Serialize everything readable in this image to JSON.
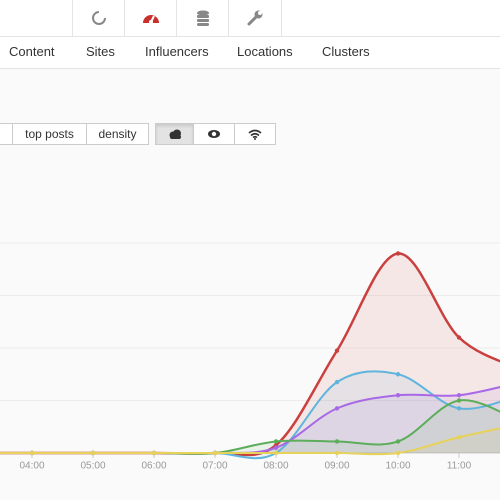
{
  "nav": {
    "tabs": [
      "Content",
      "Sites",
      "Influencers",
      "Locations",
      "Clusters"
    ]
  },
  "toolbar": {
    "buttons": [
      "top posts",
      "density"
    ]
  },
  "chart_data": {
    "type": "area",
    "categories": [
      null,
      "04:00",
      "05:00",
      "06:00",
      "07:00",
      "08:00",
      "09:00",
      "10:00",
      "11:00",
      null
    ],
    "ylim": [
      0,
      4
    ],
    "yticks": [
      0,
      1,
      2,
      3,
      4
    ],
    "grid": true,
    "series": [
      {
        "color": "#c9403f",
        "values": [
          0,
          0,
          0,
          0,
          0,
          0.15,
          1.95,
          3.8,
          2.2,
          1.6
        ]
      },
      {
        "color": "#5fb5de",
        "values": [
          0,
          0,
          0,
          0,
          0,
          0,
          1.35,
          1.5,
          0.85,
          1.1
        ]
      },
      {
        "color": "#a869e6",
        "values": [
          0,
          0,
          0,
          0,
          0,
          0.1,
          0.85,
          1.1,
          1.1,
          1.35
        ]
      },
      {
        "color": "#5cad5a",
        "values": [
          0,
          0,
          0,
          0,
          0,
          0.22,
          0.22,
          0.22,
          1.0,
          0.6
        ]
      },
      {
        "color": "#e6d25a",
        "values": [
          0,
          0,
          0,
          0,
          0,
          0,
          0,
          0,
          0.3,
          0.55
        ]
      }
    ]
  }
}
